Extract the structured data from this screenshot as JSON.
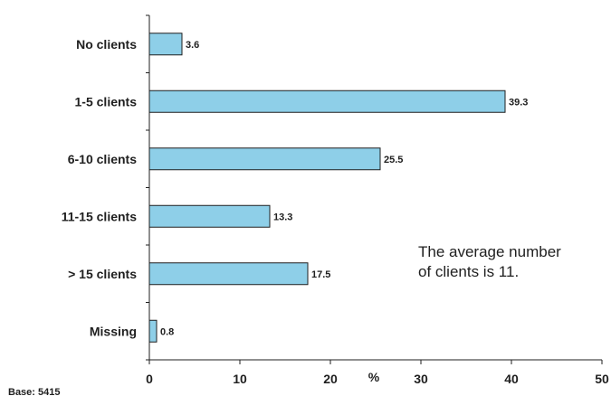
{
  "chart_data": {
    "type": "bar",
    "orientation": "horizontal",
    "categories": [
      "No clients",
      "1-5 clients",
      "6-10 clients",
      "11-15 clients",
      "> 15 clients",
      "Missing"
    ],
    "values": [
      3.6,
      39.3,
      25.5,
      13.3,
      17.5,
      0.8
    ],
    "value_labels": [
      "3.6",
      "39.3",
      "25.5",
      "13.3",
      "17.5",
      "0.8"
    ],
    "xlim": [
      0,
      50
    ],
    "xticks": [
      "0",
      "10",
      "20",
      "30",
      "40",
      "50"
    ],
    "xlabel": "%",
    "bar_color": "#8ecfe8",
    "bar_stroke": "#1f1f1f",
    "grid": false,
    "annotation": [
      "The average number",
      "of clients is 11."
    ],
    "base_note": "Base: 5415"
  }
}
